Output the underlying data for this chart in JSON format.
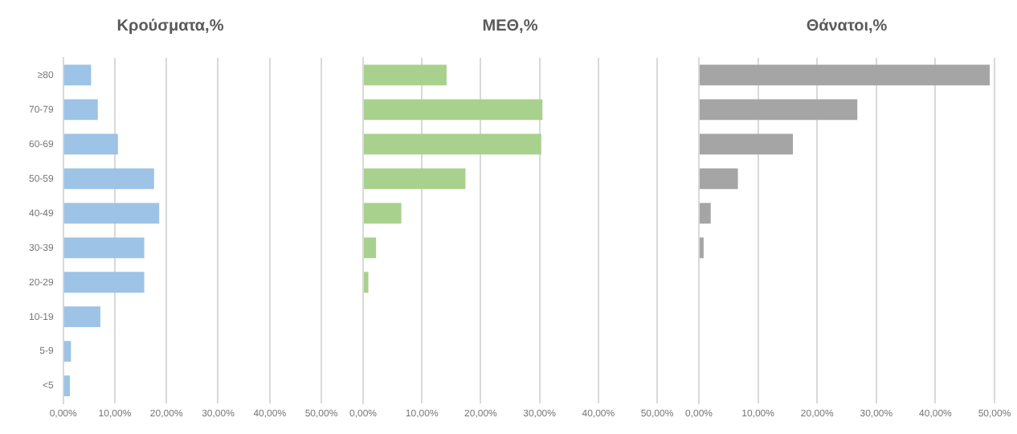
{
  "chart_data": [
    {
      "type": "bar",
      "orientation": "horizontal",
      "title": "Κρούσματα,%",
      "categories": [
        "≥80",
        "70-79",
        "60-69",
        "50-59",
        "40-49",
        "30-39",
        "20-29",
        "10-19",
        "5-9",
        "<5"
      ],
      "values": [
        5.4,
        6.7,
        10.6,
        17.6,
        18.6,
        15.7,
        15.7,
        7.2,
        1.5,
        1.3
      ],
      "color": "#9dc3e6",
      "xlim": [
        0,
        50
      ],
      "xticks": [
        {
          "value": 0,
          "label": "0,00%"
        },
        {
          "value": 10,
          "label": "10,00%"
        },
        {
          "value": 20,
          "label": "20,00%"
        },
        {
          "value": 30,
          "label": "30,00%"
        },
        {
          "value": 40,
          "label": "40,00%"
        },
        {
          "value": 50,
          "label": "50,00%"
        }
      ],
      "grid": "x",
      "legend": false
    },
    {
      "type": "bar",
      "orientation": "horizontal",
      "title": "ΜΕΘ,%",
      "categories": [
        null,
        null,
        null,
        null,
        null,
        null,
        null,
        null,
        null,
        null
      ],
      "values": [
        14.2,
        30.5,
        30.3,
        17.4,
        6.5,
        2.2,
        0.9,
        null,
        0,
        null
      ],
      "color": "#a9d18e",
      "xlim": [
        0,
        50
      ],
      "xticks": [
        {
          "value": 0,
          "label": "0,00%"
        },
        {
          "value": 10,
          "label": "10,00%"
        },
        {
          "value": 20,
          "label": "20,00%"
        },
        {
          "value": 30,
          "label": "30,00%"
        },
        {
          "value": 40,
          "label": "40,00%"
        },
        {
          "value": 50,
          "label": "50,00%"
        }
      ],
      "grid": "x",
      "legend": false,
      "tick_labels": "x"
    },
    {
      "type": "bar",
      "orientation": "horizontal",
      "title": "Θάνατοι,%",
      "categories": [
        null,
        null,
        null,
        null,
        null,
        null,
        null,
        null,
        null,
        null
      ],
      "values": [
        49.2,
        26.8,
        15.9,
        6.6,
        2.0,
        0.8,
        null,
        0,
        0,
        0
      ],
      "color": "#a5a5a5",
      "xlim": [
        0,
        50
      ],
      "xticks": [
        {
          "value": 0,
          "label": "0,00%"
        },
        {
          "value": 10,
          "label": "10,00%"
        },
        {
          "value": 20,
          "label": "20,00%"
        },
        {
          "value": 30,
          "label": "30,00%"
        },
        {
          "value": 40,
          "label": "40,00%"
        },
        {
          "value": 50,
          "label": "50,00%"
        }
      ],
      "grid": "x",
      "legend": false,
      "tick_labels": "x"
    }
  ]
}
